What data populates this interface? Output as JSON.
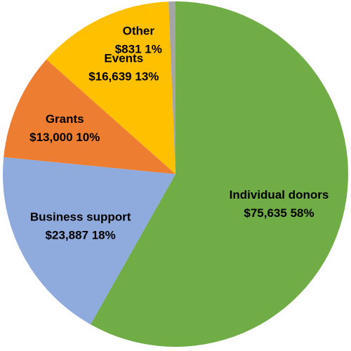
{
  "chart_data": {
    "type": "pie",
    "start_angle_deg": 0,
    "direction": "clockwise",
    "slices": [
      {
        "name": "Individual donors",
        "value": 75635,
        "value_label": "$75,635",
        "percent_label": "58%",
        "color": "#70ad47"
      },
      {
        "name": "Business support",
        "value": 23887,
        "value_label": "$23,887",
        "percent_label": "18%",
        "color": "#8faadc"
      },
      {
        "name": "Grants",
        "value": 13000,
        "value_label": "$13,000",
        "percent_label": "10%",
        "color": "#ed7d31"
      },
      {
        "name": "Events",
        "value": 16639,
        "value_label": "$16,639",
        "percent_label": "13%",
        "color": "#ffc000"
      },
      {
        "name": "Other",
        "value": 831,
        "value_label": "$831",
        "percent_label": "1%",
        "color": "#a5a5a5"
      }
    ]
  }
}
